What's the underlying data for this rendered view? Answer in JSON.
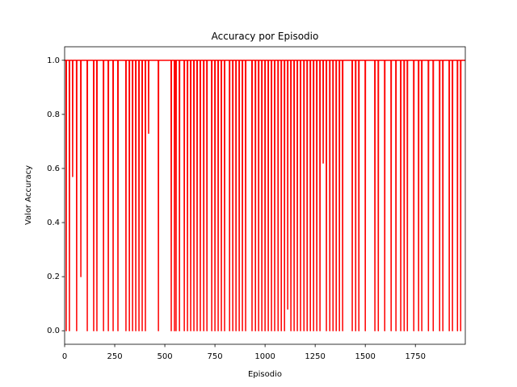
{
  "chart_data": {
    "type": "line",
    "title": "Accuracy por Episodio",
    "x_label": "Episodio",
    "y_label": "Valor Accuracy",
    "color": "#ff0000",
    "x": [
      0,
      7,
      8,
      9,
      23,
      24,
      25,
      39,
      40,
      41,
      59,
      60,
      61,
      80,
      81,
      82,
      112,
      113,
      114,
      144,
      145,
      146,
      160,
      161,
      162,
      193,
      194,
      195,
      217,
      218,
      219,
      241,
      242,
      243,
      265,
      266,
      267,
      305,
      306,
      307,
      322,
      323,
      324,
      338,
      339,
      340,
      354,
      355,
      356,
      370,
      371,
      372,
      386,
      387,
      388,
      402,
      403,
      404,
      418,
      419,
      420,
      467,
      468,
      469,
      531,
      532,
      533,
      547,
      548,
      549,
      555,
      556,
      557,
      572,
      573,
      574,
      596,
      597,
      598,
      612,
      613,
      614,
      628,
      629,
      630,
      644,
      645,
      646,
      660,
      661,
      662,
      676,
      677,
      678,
      693,
      694,
      695,
      709,
      710,
      711,
      733,
      734,
      735,
      749,
      750,
      751,
      765,
      766,
      767,
      781,
      782,
      783,
      797,
      798,
      799,
      822,
      823,
      824,
      838,
      839,
      840,
      854,
      855,
      856,
      870,
      871,
      872,
      886,
      887,
      888,
      902,
      903,
      904,
      934,
      935,
      936,
      951,
      952,
      953,
      967,
      968,
      969,
      983,
      984,
      985,
      999,
      1000,
      1001,
      1015,
      1016,
      1017,
      1031,
      1032,
      1033,
      1047,
      1048,
      1049,
      1064,
      1065,
      1066,
      1080,
      1081,
      1082,
      1096,
      1097,
      1098,
      1112,
      1113,
      1114,
      1128,
      1129,
      1130,
      1144,
      1145,
      1146,
      1160,
      1161,
      1162,
      1176,
      1177,
      1178,
      1193,
      1194,
      1195,
      1209,
      1210,
      1211,
      1225,
      1226,
      1227,
      1241,
      1242,
      1243,
      1257,
      1258,
      1259,
      1273,
      1274,
      1275,
      1289,
      1290,
      1291,
      1305,
      1306,
      1307,
      1322,
      1323,
      1324,
      1338,
      1339,
      1340,
      1354,
      1355,
      1356,
      1370,
      1371,
      1372,
      1386,
      1387,
      1388,
      1434,
      1435,
      1436,
      1451,
      1452,
      1453,
      1467,
      1468,
      1469,
      1499,
      1500,
      1501,
      1547,
      1548,
      1549,
      1564,
      1565,
      1566,
      1596,
      1597,
      1598,
      1628,
      1629,
      1630,
      1652,
      1653,
      1654,
      1676,
      1677,
      1678,
      1693,
      1694,
      1695,
      1709,
      1710,
      1711,
      1741,
      1742,
      1743,
      1765,
      1766,
      1767,
      1781,
      1782,
      1783,
      1814,
      1815,
      1816,
      1838,
      1839,
      1840,
      1870,
      1871,
      1872,
      1886,
      1887,
      1888,
      1918,
      1919,
      1920,
      1934,
      1935,
      1936,
      1959,
      1960,
      1961,
      1975,
      1976,
      1977,
      1999
    ],
    "values": [
      1,
      1,
      0,
      1,
      1,
      0,
      1,
      1,
      0.57,
      1,
      1,
      0,
      1,
      1,
      0.2,
      1,
      1,
      0,
      1,
      1,
      0,
      1,
      1,
      0,
      1,
      1,
      0,
      1,
      1,
      0,
      1,
      1,
      0,
      1,
      1,
      0,
      1,
      1,
      0,
      1,
      1,
      0,
      1,
      1,
      0,
      1,
      1,
      0,
      1,
      1,
      0,
      1,
      1,
      0,
      1,
      1,
      0,
      1,
      1,
      0.73,
      1,
      1,
      0,
      1,
      1,
      0,
      1,
      1,
      0,
      1,
      1,
      0,
      1,
      1,
      0,
      1,
      1,
      0,
      1,
      1,
      0,
      1,
      1,
      0,
      1,
      1,
      0,
      1,
      1,
      0,
      1,
      1,
      0,
      1,
      1,
      0,
      1,
      1,
      0,
      1,
      1,
      0,
      1,
      1,
      0,
      1,
      1,
      0,
      1,
      1,
      0,
      1,
      1,
      0,
      1,
      1,
      0,
      1,
      1,
      0,
      1,
      1,
      0,
      1,
      1,
      0,
      1,
      1,
      0,
      1,
      1,
      0,
      1,
      1,
      0,
      1,
      1,
      0,
      1,
      1,
      0,
      1,
      1,
      0,
      1,
      1,
      0,
      1,
      1,
      0,
      1,
      1,
      0,
      1,
      1,
      0,
      1,
      1,
      0,
      1,
      1,
      0,
      1,
      1,
      0,
      1,
      1,
      0.08,
      1,
      1,
      0,
      1,
      1,
      0,
      1,
      1,
      0,
      1,
      1,
      0,
      1,
      1,
      0,
      1,
      1,
      0,
      1,
      1,
      0,
      1,
      1,
      0,
      1,
      1,
      0,
      1,
      1,
      0,
      1,
      1,
      0.62,
      1,
      1,
      0,
      1,
      1,
      0,
      1,
      1,
      0,
      1,
      1,
      0,
      1,
      1,
      0,
      1,
      1,
      0,
      1,
      1,
      0,
      1,
      1,
      0,
      1,
      1,
      0,
      1,
      1,
      0,
      1,
      1,
      0,
      1,
      1,
      0,
      1,
      1,
      0,
      1,
      1,
      0,
      1,
      1,
      0,
      1,
      1,
      0,
      1,
      1,
      0,
      1,
      1,
      0,
      1,
      1,
      0,
      1,
      1,
      0,
      1,
      1,
      0,
      1,
      1,
      0,
      1,
      1,
      0,
      1,
      1,
      0,
      1,
      1,
      0,
      1,
      1,
      0,
      1,
      1,
      0,
      1,
      1,
      0,
      1,
      1,
      0,
      1,
      1
    ],
    "xlim": [
      0,
      1999
    ],
    "ylim": [
      -0.05,
      1.05
    ],
    "xticks": [
      0,
      250,
      500,
      750,
      1000,
      1250,
      1500,
      1750
    ],
    "yticks": [
      {
        "value": 0,
        "label": "0.0"
      },
      0.2,
      0.4,
      0.6,
      0.8,
      {
        "value": 1,
        "label": "1.0"
      }
    ]
  }
}
